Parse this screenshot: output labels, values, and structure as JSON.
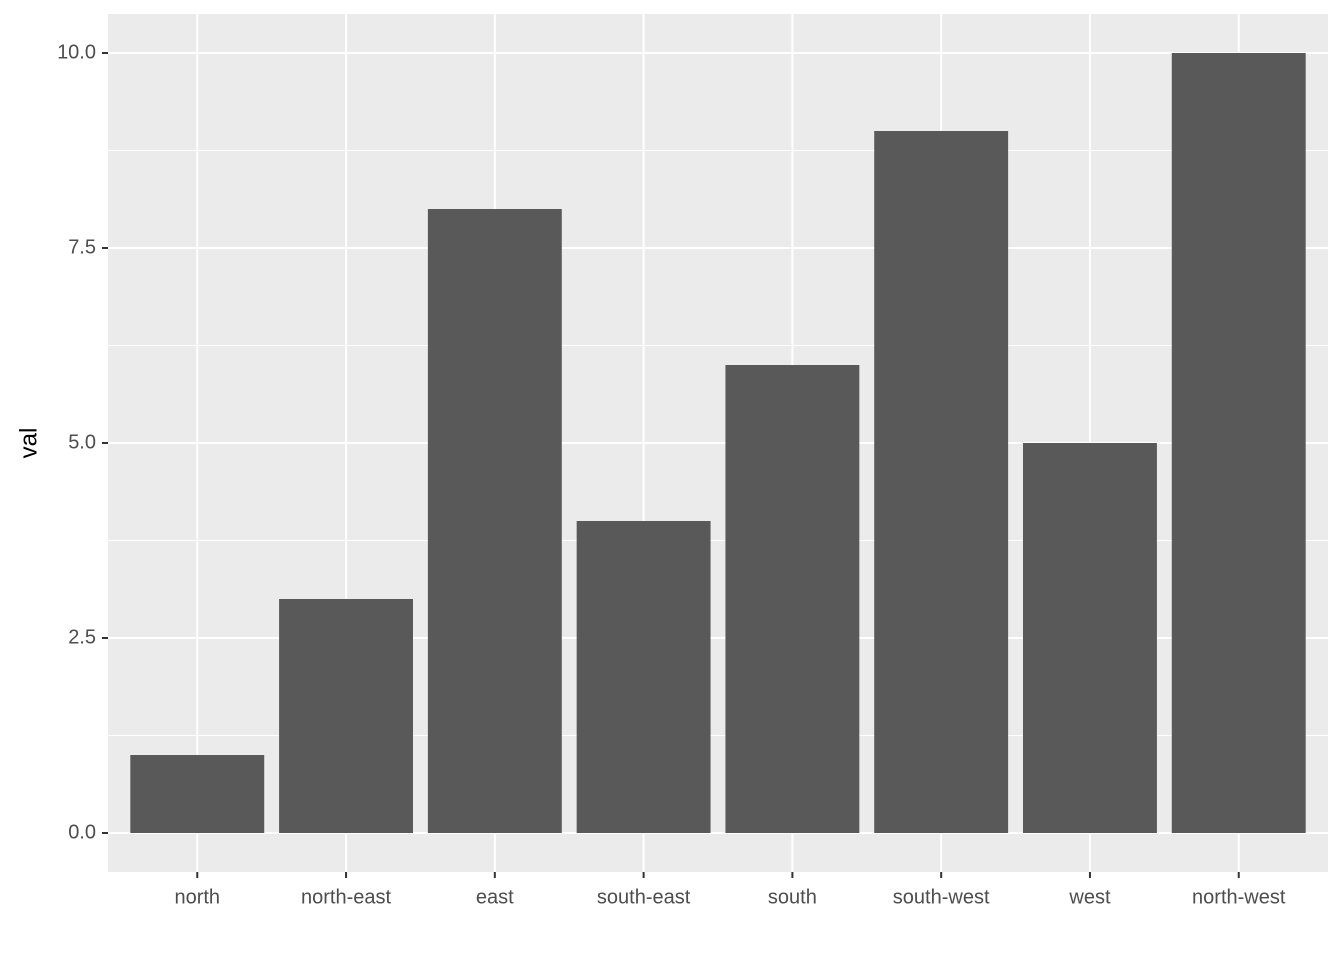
{
  "chart_data": {
    "type": "bar",
    "y_label": "val",
    "categories": [
      "north",
      "north-east",
      "east",
      "south-east",
      "south",
      "south-west",
      "west",
      "north-west"
    ],
    "values": [
      1,
      3,
      8,
      4,
      6,
      9,
      5,
      10
    ],
    "color": "#595959",
    "ylim": [
      -0.5,
      10.5
    ],
    "yticks": [
      {
        "value": 0,
        "label": "0.0"
      },
      2.5,
      {
        "value": 5,
        "label": "5.0"
      },
      7.5,
      {
        "value": 10,
        "label": "10.0"
      }
    ],
    "grid": true
  }
}
